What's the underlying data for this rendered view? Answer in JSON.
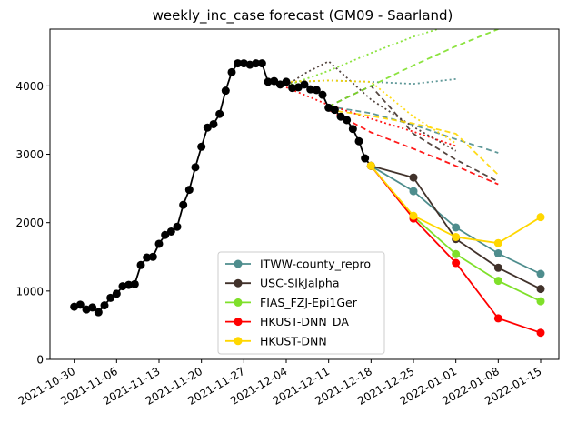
{
  "chart_data": {
    "type": "line",
    "title": "weekly_inc_case forecast (GM09 - Saarland)",
    "xlabel": "",
    "ylabel": "",
    "xlim": [
      "2021-10-26",
      "2022-01-18"
    ],
    "ylim": [
      0,
      4830
    ],
    "x_ticks": [
      "2021-10-30",
      "2021-11-06",
      "2021-11-13",
      "2021-11-20",
      "2021-11-27",
      "2021-12-04",
      "2021-12-11",
      "2021-12-18",
      "2021-12-25",
      "2022-01-01",
      "2022-01-08",
      "2022-01-15"
    ],
    "y_ticks": [
      0,
      1000,
      2000,
      3000,
      4000
    ],
    "legend_position": "lower-center",
    "truth": {
      "color": "#000000",
      "x": [
        "2021-10-30",
        "2021-10-31",
        "2021-11-01",
        "2021-11-02",
        "2021-11-03",
        "2021-11-04",
        "2021-11-05",
        "2021-11-06",
        "2021-11-07",
        "2021-11-08",
        "2021-11-09",
        "2021-11-10",
        "2021-11-11",
        "2021-11-12",
        "2021-11-13",
        "2021-11-14",
        "2021-11-15",
        "2021-11-16",
        "2021-11-17",
        "2021-11-18",
        "2021-11-19",
        "2021-11-20",
        "2021-11-21",
        "2021-11-22",
        "2021-11-23",
        "2021-11-24",
        "2021-11-25",
        "2021-11-26",
        "2021-11-27",
        "2021-11-28",
        "2021-11-29",
        "2021-11-30",
        "2021-12-01",
        "2021-12-02",
        "2021-12-03",
        "2021-12-04",
        "2021-12-05",
        "2021-12-06",
        "2021-12-07",
        "2021-12-08",
        "2021-12-09",
        "2021-12-10",
        "2021-12-11",
        "2021-12-12",
        "2021-12-13",
        "2021-12-14",
        "2021-12-15",
        "2021-12-16",
        "2021-12-17",
        "2021-12-18"
      ],
      "y": [
        770,
        800,
        730,
        760,
        690,
        790,
        900,
        960,
        1070,
        1090,
        1100,
        1380,
        1490,
        1500,
        1690,
        1820,
        1870,
        1940,
        2260,
        2480,
        2810,
        3110,
        3390,
        3440,
        3590,
        3930,
        4200,
        4330,
        4330,
        4310,
        4330,
        4330,
        4060,
        4070,
        4020,
        4060,
        3970,
        3980,
        4020,
        3950,
        3940,
        3870,
        3680,
        3650,
        3550,
        3500,
        3370,
        3190,
        2940,
        2830
      ]
    },
    "series": [
      {
        "name": "ITWW-county_repro",
        "color": "#4e8d8d",
        "x": [
          "2021-12-18",
          "2021-12-25",
          "2022-01-01",
          "2022-01-08",
          "2022-01-15"
        ],
        "values": [
          2830,
          2460,
          1930,
          1550,
          1250
        ]
      },
      {
        "name": "USC-SIkJalpha",
        "color": "#41322b",
        "x": [
          "2021-12-18",
          "2021-12-25",
          "2022-01-01",
          "2022-01-08",
          "2022-01-15"
        ],
        "values": [
          2830,
          2660,
          1760,
          1340,
          1030
        ]
      },
      {
        "name": "FIAS_FZJ-Epi1Ger",
        "color": "#7fe02a",
        "x": [
          "2021-12-18",
          "2021-12-25",
          "2022-01-01",
          "2022-01-08",
          "2022-01-15"
        ],
        "values": [
          2830,
          2090,
          1540,
          1150,
          850
        ]
      },
      {
        "name": "HKUST-DNN_DA",
        "color": "#ff0000",
        "x": [
          "2021-12-18",
          "2021-12-25",
          "2022-01-01",
          "2022-01-08",
          "2022-01-15"
        ],
        "values": [
          2830,
          2060,
          1410,
          600,
          390
        ]
      },
      {
        "name": "HKUST-DNN",
        "color": "#ffd700",
        "x": [
          "2021-12-18",
          "2021-12-25",
          "2022-01-01",
          "2022-01-08",
          "2022-01-15"
        ],
        "values": [
          2830,
          2100,
          1790,
          1700,
          2080
        ]
      }
    ],
    "past_forecasts": [
      {
        "color": "#4e8d8d",
        "dash": "dotted",
        "x": [
          "2021-12-04",
          "2021-12-11",
          "2021-12-18",
          "2021-12-25",
          "2022-01-01"
        ],
        "values": [
          4050,
          4080,
          4060,
          4030,
          4100
        ]
      },
      {
        "color": "#4e8d8d",
        "dash": "dashed",
        "x": [
          "2021-12-11",
          "2021-12-18",
          "2021-12-25",
          "2022-01-01",
          "2022-01-08"
        ],
        "values": [
          3700,
          3600,
          3430,
          3220,
          3020
        ]
      },
      {
        "color": "#41322b",
        "dash": "dotted",
        "x": [
          "2021-12-04",
          "2021-12-07",
          "2021-12-11",
          "2021-12-18",
          "2021-12-25",
          "2022-01-01"
        ],
        "values": [
          4000,
          4180,
          4360,
          3800,
          3400,
          3050
        ]
      },
      {
        "color": "#41322b",
        "dash": "dashed",
        "x": [
          "2021-12-11",
          "2021-12-18",
          "2021-12-25",
          "2022-01-01",
          "2022-01-08"
        ],
        "values": [
          3700,
          4000,
          3300,
          2920,
          2600
        ]
      },
      {
        "color": "#7fe02a",
        "dash": "dotted",
        "x": [
          "2021-12-04",
          "2021-12-11",
          "2021-12-18",
          "2021-12-25",
          "2021-12-29"
        ],
        "values": [
          4000,
          4220,
          4480,
          4720,
          4830
        ]
      },
      {
        "color": "#7fe02a",
        "dash": "dashed",
        "x": [
          "2021-12-11",
          "2021-12-18",
          "2021-12-25",
          "2022-01-01",
          "2022-01-08"
        ],
        "values": [
          3700,
          4000,
          4300,
          4580,
          4830
        ]
      },
      {
        "color": "#ff0000",
        "dash": "dotted",
        "x": [
          "2021-12-04",
          "2021-12-11",
          "2021-12-18",
          "2021-12-25",
          "2022-01-01"
        ],
        "values": [
          3980,
          3720,
          3520,
          3330,
          3120
        ]
      },
      {
        "color": "#ff0000",
        "dash": "dashed",
        "x": [
          "2021-12-11",
          "2021-12-18",
          "2021-12-25",
          "2022-01-01",
          "2022-01-08"
        ],
        "values": [
          3650,
          3320,
          3080,
          2830,
          2560
        ]
      },
      {
        "color": "#ffd700",
        "dash": "dotted",
        "x": [
          "2021-12-04",
          "2021-12-11",
          "2021-12-18",
          "2021-12-25",
          "2022-01-01"
        ],
        "values": [
          4060,
          4080,
          4060,
          3550,
          3160
        ]
      },
      {
        "color": "#ffd700",
        "dash": "dashed",
        "x": [
          "2021-12-11",
          "2021-12-18",
          "2021-12-25",
          "2022-01-01",
          "2022-01-08"
        ],
        "values": [
          3650,
          3560,
          3450,
          3300,
          2700
        ]
      }
    ]
  }
}
